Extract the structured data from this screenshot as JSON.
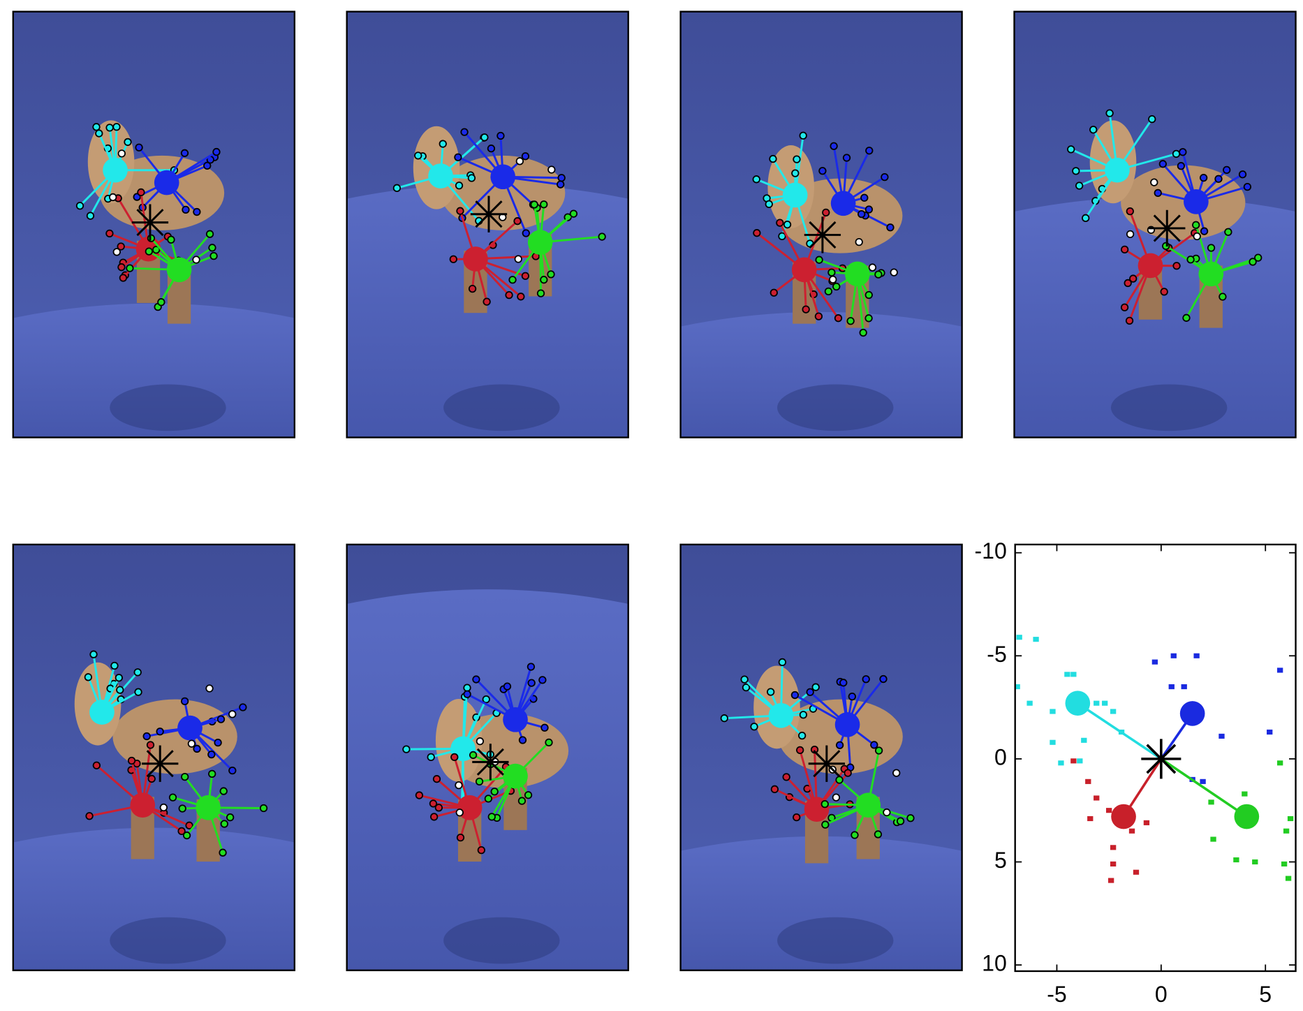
{
  "chart_data": {
    "type": "scatter",
    "xlim": [
      -7,
      6.45
    ],
    "ylim": [
      -10.4,
      10.3
    ],
    "y_inverted": true,
    "xticks": [
      -5,
      0,
      5
    ],
    "yticks": [
      -10,
      -5,
      0,
      5,
      10
    ],
    "origin": [
      0,
      0
    ],
    "origin_color": "#000000",
    "series": [
      {
        "color": "#22dde0",
        "center": [
          -4.0,
          -2.7
        ],
        "x": [
          -6.8,
          -6.0,
          -6.9,
          -6.3,
          -4.5,
          -4.2,
          -5.2,
          -3.1,
          -2.7,
          -2.3,
          -4.8,
          -3.9,
          -3.7,
          -1.9,
          -5.2
        ],
        "values": [
          -5.9,
          -5.8,
          -3.5,
          -2.7,
          -4.1,
          -4.1,
          -2.3,
          -2.7,
          -2.7,
          -2.3,
          0.2,
          0.1,
          -0.9,
          -1.3,
          -0.8
        ]
      },
      {
        "color": "#1a2ae0",
        "center": [
          1.5,
          -2.2
        ],
        "x": [
          -0.3,
          0.6,
          1.7,
          1.1,
          0.5,
          2.9,
          5.2,
          5.7,
          1.5,
          2.0
        ],
        "values": [
          -4.7,
          -5.0,
          -5.0,
          -3.5,
          -3.5,
          -1.1,
          -1.3,
          -4.3,
          1.0,
          1.1
        ]
      },
      {
        "color": "#c8202a",
        "center": [
          -1.8,
          2.8
        ],
        "x": [
          -4.2,
          -3.5,
          -3.1,
          -3.4,
          -2.3,
          -2.3,
          -2.4,
          -1.2,
          -1.4,
          -0.7,
          -2.5
        ],
        "values": [
          0.1,
          1.1,
          1.9,
          2.9,
          4.3,
          5.1,
          5.9,
          5.5,
          3.5,
          3.1,
          2.5
        ]
      },
      {
        "color": "#22cc22",
        "center": [
          4.1,
          2.8
        ],
        "x": [
          5.7,
          4.0,
          2.4,
          6.2,
          6.0,
          3.6,
          4.5,
          5.9,
          2.5,
          6.1
        ],
        "values": [
          0.2,
          1.7,
          2.1,
          2.9,
          3.5,
          4.9,
          5.0,
          5.1,
          3.9,
          5.8
        ]
      }
    ]
  }
}
